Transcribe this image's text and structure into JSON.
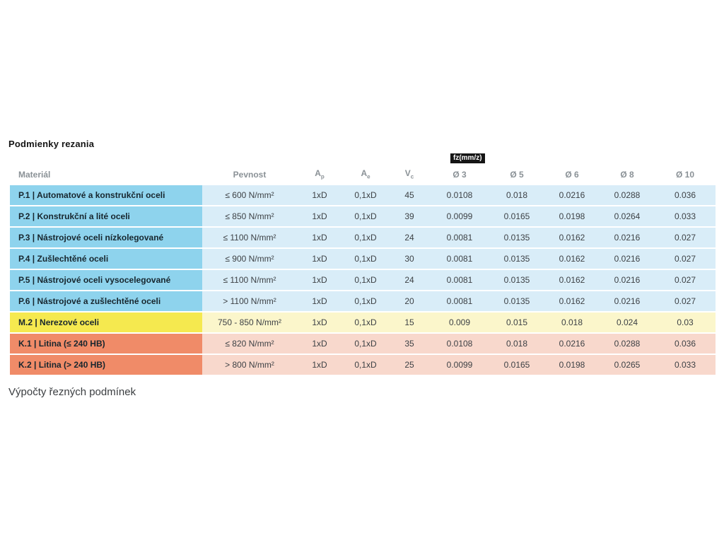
{
  "page": {
    "title": "Podmienky rezania",
    "footer_heading": "Výpočty řezných podmínek"
  },
  "table": {
    "fz_tooltip": "fz(mm/z)",
    "headers": {
      "material": "Materiál",
      "pevnost": "Pevnost",
      "ap_base": "A",
      "ap_sub": "p",
      "ae_base": "A",
      "ae_sub": "e",
      "vc_base": "V",
      "vc_sub": "c",
      "d3": "Ø 3",
      "d5": "Ø 5",
      "d6": "Ø 6",
      "d8": "Ø 8",
      "d10": "Ø 10"
    },
    "rows": [
      {
        "material": "P.1 | Automatové a konstrukční oceli",
        "pevnost": "≤ 600 N/mm²",
        "ap": "1xD",
        "ae": "0,1xD",
        "vc": "45",
        "d3": "0.0108",
        "d5": "0.018",
        "d6": "0.0216",
        "d8": "0.0288",
        "d10": "0.036"
      },
      {
        "material": "P.2 | Konstrukční a lité oceli",
        "pevnost": "≤ 850 N/mm²",
        "ap": "1xD",
        "ae": "0,1xD",
        "vc": "39",
        "d3": "0.0099",
        "d5": "0.0165",
        "d6": "0.0198",
        "d8": "0.0264",
        "d10": "0.033"
      },
      {
        "material": "P.3 | Nástrojové oceli nízkolegované",
        "pevnost": "≤ 1100 N/mm²",
        "ap": "1xD",
        "ae": "0,1xD",
        "vc": "24",
        "d3": "0.0081",
        "d5": "0.0135",
        "d6": "0.0162",
        "d8": "0.0216",
        "d10": "0.027"
      },
      {
        "material": "P.4 | Zušlechtěné oceli",
        "pevnost": "≤ 900 N/mm²",
        "ap": "1xD",
        "ae": "0,1xD",
        "vc": "30",
        "d3": "0.0081",
        "d5": "0.0135",
        "d6": "0.0162",
        "d8": "0.0216",
        "d10": "0.027"
      },
      {
        "material": "P.5 | Nástrojové oceli vysocelegované",
        "pevnost": "≤ 1100 N/mm²",
        "ap": "1xD",
        "ae": "0,1xD",
        "vc": "24",
        "d3": "0.0081",
        "d5": "0.0135",
        "d6": "0.0162",
        "d8": "0.0216",
        "d10": "0.027"
      },
      {
        "material": "P.6 | Nástrojové a zušlechtěné oceli",
        "pevnost": "> 1100 N/mm²",
        "ap": "1xD",
        "ae": "0,1xD",
        "vc": "20",
        "d3": "0.0081",
        "d5": "0.0135",
        "d6": "0.0162",
        "d8": "0.0216",
        "d10": "0.027"
      },
      {
        "material": "M.2 | Nerezové oceli",
        "pevnost": "750 - 850 N/mm²",
        "ap": "1xD",
        "ae": "0,1xD",
        "vc": "15",
        "d3": "0.009",
        "d5": "0.015",
        "d6": "0.018",
        "d8": "0.024",
        "d10": "0.03"
      },
      {
        "material": "K.1 | Litina (≤ 240 HB)",
        "pevnost": "≤ 820 N/mm²",
        "ap": "1xD",
        "ae": "0,1xD",
        "vc": "35",
        "d3": "0.0108",
        "d5": "0.018",
        "d6": "0.0216",
        "d8": "0.0288",
        "d10": "0.036"
      },
      {
        "material": "K.2 | Litina (> 240 HB)",
        "pevnost": "> 800 N/mm²",
        "ap": "1xD",
        "ae": "0,1xD",
        "vc": "25",
        "d3": "0.0099",
        "d5": "0.0165",
        "d6": "0.0198",
        "d8": "0.0265",
        "d10": "0.033"
      }
    ]
  },
  "colors": {
    "steel_label": "#8ed3ed",
    "steel_cell": "#d9edf8",
    "stainless_label": "#f5e94f",
    "stainless_cell": "#fbf6cb",
    "castiron_label": "#f08b68",
    "castiron_cell": "#f8d8cc",
    "tooltip_bg": "#151515",
    "tooltip_text": "#ffffff",
    "header_text": "#8a9196",
    "value_text": "#3d4145",
    "label_text": "#17262e"
  },
  "chart_data": {
    "type": "table",
    "title": "Podmienky rezania",
    "columns": [
      "Materiál",
      "Pevnost",
      "Ap",
      "Ae",
      "Vc",
      "Ø 3 fz(mm/z)",
      "Ø 5",
      "Ø 6",
      "Ø 8",
      "Ø 10"
    ],
    "rows": [
      [
        "P.1 | Automatové a konstrukční oceli",
        "≤ 600 N/mm²",
        "1xD",
        "0,1xD",
        45,
        0.0108,
        0.018,
        0.0216,
        0.0288,
        0.036
      ],
      [
        "P.2 | Konstrukční a lité oceli",
        "≤ 850 N/mm²",
        "1xD",
        "0,1xD",
        39,
        0.0099,
        0.0165,
        0.0198,
        0.0264,
        0.033
      ],
      [
        "P.3 | Nástrojové oceli nízkolegované",
        "≤ 1100 N/mm²",
        "1xD",
        "0,1xD",
        24,
        0.0081,
        0.0135,
        0.0162,
        0.0216,
        0.027
      ],
      [
        "P.4 | Zušlechtěné oceli",
        "≤ 900 N/mm²",
        "1xD",
        "0,1xD",
        30,
        0.0081,
        0.0135,
        0.0162,
        0.0216,
        0.027
      ],
      [
        "P.5 | Nástrojové oceli vysocelegované",
        "≤ 1100 N/mm²",
        "1xD",
        "0,1xD",
        24,
        0.0081,
        0.0135,
        0.0162,
        0.0216,
        0.027
      ],
      [
        "P.6 | Nástrojové a zušlechtěné oceli",
        "> 1100 N/mm²",
        "1xD",
        "0,1xD",
        20,
        0.0081,
        0.0135,
        0.0162,
        0.0216,
        0.027
      ],
      [
        "M.2 | Nerezové oceli",
        "750 - 850 N/mm²",
        "1xD",
        "0,1xD",
        15,
        0.009,
        0.015,
        0.018,
        0.024,
        0.03
      ],
      [
        "K.1 | Litina (≤ 240 HB)",
        "≤ 820 N/mm²",
        "1xD",
        "0,1xD",
        35,
        0.0108,
        0.018,
        0.0216,
        0.0288,
        0.036
      ],
      [
        "K.2 | Litina (> 240 HB)",
        "> 800 N/mm²",
        "1xD",
        "0,1xD",
        25,
        0.0099,
        0.0165,
        0.0198,
        0.0265,
        0.033
      ]
    ]
  }
}
